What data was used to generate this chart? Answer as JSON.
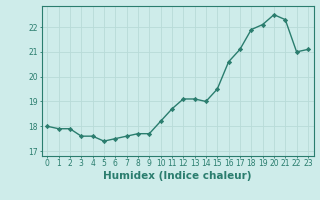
{
  "x": [
    0,
    1,
    2,
    3,
    4,
    5,
    6,
    7,
    8,
    9,
    10,
    11,
    12,
    13,
    14,
    15,
    16,
    17,
    18,
    19,
    20,
    21,
    22,
    23
  ],
  "y": [
    18.0,
    17.9,
    17.9,
    17.6,
    17.6,
    17.4,
    17.5,
    17.6,
    17.7,
    17.7,
    18.2,
    18.7,
    19.1,
    19.1,
    19.0,
    19.5,
    20.6,
    21.1,
    21.9,
    22.1,
    22.5,
    22.3,
    21.0,
    21.1
  ],
  "line_color": "#2a7d6e",
  "marker": "D",
  "markersize": 2.2,
  "linewidth": 1.0,
  "xlabel": "Humidex (Indice chaleur)",
  "xlim": [
    -0.5,
    23.5
  ],
  "ylim": [
    16.8,
    22.85
  ],
  "yticks": [
    17,
    18,
    19,
    20,
    21,
    22
  ],
  "xticks": [
    0,
    1,
    2,
    3,
    4,
    5,
    6,
    7,
    8,
    9,
    10,
    11,
    12,
    13,
    14,
    15,
    16,
    17,
    18,
    19,
    20,
    21,
    22,
    23
  ],
  "bg_color": "#ceecea",
  "grid_color": "#b8dbd8",
  "tick_label_fontsize": 5.5,
  "xlabel_fontsize": 7.5,
  "spine_color": "#2a7d6e"
}
